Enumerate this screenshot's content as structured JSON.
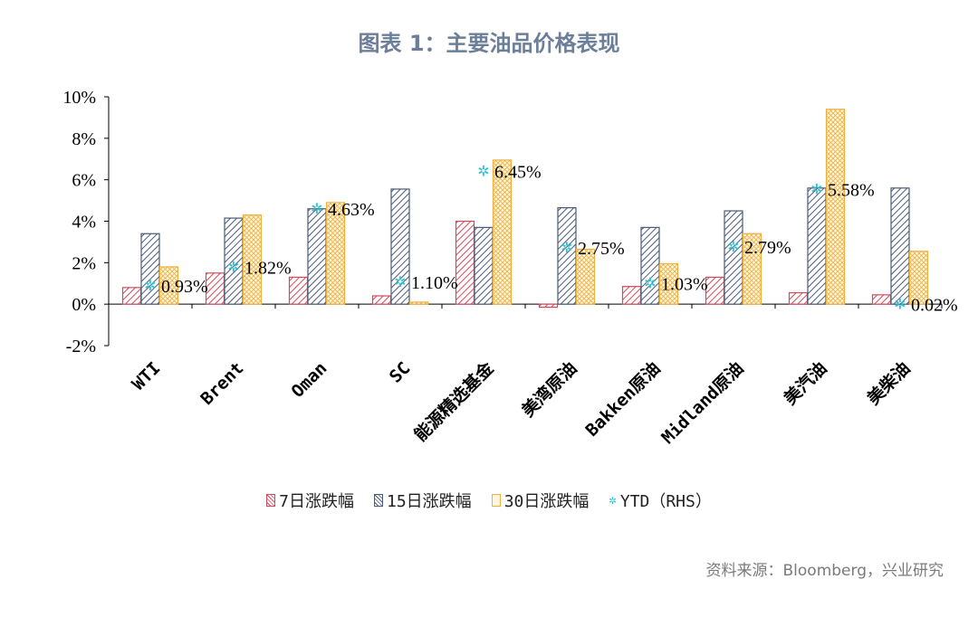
{
  "title": "图表 1：主要油品价格表现",
  "source": "资料来源：Bloomberg，兴业研究",
  "colors": {
    "s7": "#d44a5c",
    "s15": "#4a5a7a",
    "s30": "#f0b040",
    "ytd": "#2cc4d4",
    "title": "#6b7f9a"
  },
  "chart_data": {
    "type": "bar",
    "categories": [
      "WTI",
      "Brent",
      "Oman",
      "SC",
      "能源精选基金",
      "美湾原油",
      "Bakken原油",
      "Midland原油",
      "美汽油",
      "美柴油"
    ],
    "series": [
      {
        "name": "7日涨跌幅",
        "values": [
          0.8,
          1.5,
          1.3,
          0.4,
          4.0,
          -0.15,
          0.85,
          1.3,
          0.55,
          0.45
        ]
      },
      {
        "name": "15日涨跌幅",
        "values": [
          3.4,
          4.15,
          4.6,
          5.55,
          3.7,
          4.65,
          3.7,
          4.5,
          5.6,
          5.6
        ]
      },
      {
        "name": "30日涨跌幅",
        "values": [
          1.8,
          4.3,
          4.9,
          0.1,
          6.95,
          2.65,
          1.95,
          3.4,
          9.4,
          2.55
        ]
      },
      {
        "name": "YTD（RHS）",
        "values": [
          0.93,
          1.82,
          4.63,
          1.1,
          6.45,
          2.75,
          1.03,
          2.79,
          5.58,
          0.02
        ]
      }
    ],
    "ytd_labels": [
      "0.93%",
      "1.82%",
      "4.63%",
      "1.10%",
      "6.45%",
      "2.75%",
      "1.03%",
      "2.79%",
      "5.58%",
      "0.02%"
    ],
    "y_ticks": [
      "10%",
      "8%",
      "6%",
      "4%",
      "2%",
      "0%",
      "-2%"
    ],
    "ylim": [
      -2,
      10
    ],
    "legend": [
      "7日涨跌幅",
      "15日涨跌幅",
      "30日涨跌幅",
      "YTD（RHS）"
    ],
    "legend_position": "bottom"
  }
}
